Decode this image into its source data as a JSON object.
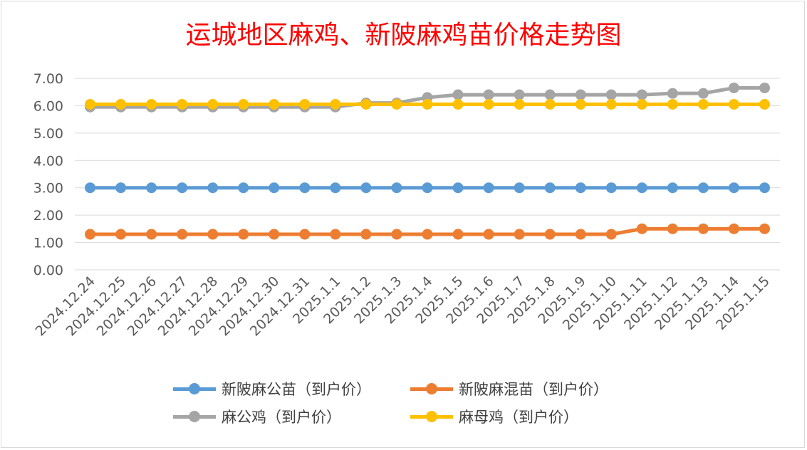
{
  "title": "运城地区麻鸡、新陂麻鸡苗价格走势图",
  "chart_data": {
    "type": "line",
    "title": "运城地区麻鸡、新陂麻鸡苗价格走势图",
    "categories": [
      "2024.12.24",
      "2024.12.25",
      "2024.12.26",
      "2024.12.27",
      "2024.12.28",
      "2024.12.29",
      "2024.12.30",
      "2024.12.31",
      "2025.1.1",
      "2025.1.2",
      "2025.1.3",
      "2025.1.4",
      "2025.1.5",
      "2025.1.6",
      "2025.1.7",
      "2025.1.8",
      "2025.1.9",
      "2025.1.10",
      "2025.1.11",
      "2025.1.12",
      "2025.1.13",
      "2025.1.14",
      "2025.1.15"
    ],
    "ylim": [
      0,
      7
    ],
    "yticks": [
      "0.00",
      "1.00",
      "2.00",
      "3.00",
      "4.00",
      "5.00",
      "6.00",
      "7.00"
    ],
    "grid": true,
    "legend_position": "bottom",
    "series": [
      {
        "name": "新陂麻公苗（到户价）",
        "color": "#5b9bd5",
        "values": [
          3,
          3,
          3,
          3,
          3,
          3,
          3,
          3,
          3,
          3,
          3,
          3,
          3,
          3,
          3,
          3,
          3,
          3,
          3,
          3,
          3,
          3,
          3
        ]
      },
      {
        "name": "新陂麻混苗（到户价）",
        "color": "#ed7d31",
        "values": [
          1.3,
          1.3,
          1.3,
          1.3,
          1.3,
          1.3,
          1.3,
          1.3,
          1.3,
          1.3,
          1.3,
          1.3,
          1.3,
          1.3,
          1.3,
          1.3,
          1.3,
          1.3,
          1.5,
          1.5,
          1.5,
          1.5,
          1.5
        ]
      },
      {
        "name": "麻公鸡（到户价）",
        "color": "#a5a5a5",
        "values": [
          5.95,
          5.95,
          5.95,
          5.95,
          5.95,
          5.95,
          5.95,
          5.95,
          5.95,
          6.1,
          6.1,
          6.3,
          6.4,
          6.4,
          6.4,
          6.4,
          6.4,
          6.4,
          6.4,
          6.45,
          6.45,
          6.65,
          6.65
        ]
      },
      {
        "name": "麻母鸡（到户价）",
        "color": "#ffc000",
        "values": [
          6.05,
          6.05,
          6.05,
          6.05,
          6.05,
          6.05,
          6.05,
          6.05,
          6.05,
          6.05,
          6.05,
          6.05,
          6.05,
          6.05,
          6.05,
          6.05,
          6.05,
          6.05,
          6.05,
          6.05,
          6.05,
          6.05,
          6.05
        ]
      }
    ]
  },
  "legend": {
    "s0": "新陂麻公苗（到户价）",
    "s1": "新陂麻混苗（到户价）",
    "s2": "麻公鸡（到户价）",
    "s3": "麻母鸡（到户价）"
  }
}
